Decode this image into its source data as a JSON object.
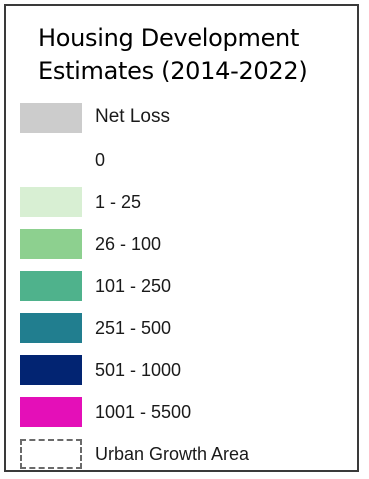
{
  "legend": {
    "title_line1": "Housing Development",
    "title_line2": "Estimates (2014-2022)",
    "items": [
      {
        "label": "Net Loss",
        "color": "#cccccc",
        "style": "solid"
      },
      {
        "label": "0",
        "color": "#ffffff",
        "style": "solid"
      },
      {
        "label": "1 - 25",
        "color": "#d8efd3",
        "style": "solid"
      },
      {
        "label": "26 - 100",
        "color": "#8dd08f",
        "style": "solid"
      },
      {
        "label": "101 - 250",
        "color": "#4fb28c",
        "style": "solid"
      },
      {
        "label": "251 - 500",
        "color": "#217e8f",
        "style": "solid"
      },
      {
        "label": "501 - 1000",
        "color": "#022472",
        "style": "solid"
      },
      {
        "label": "1001 - 5500",
        "color": "#e40fb8",
        "style": "solid"
      },
      {
        "label": "Urban Growth Area",
        "color": "#6a6a6a",
        "style": "dashed"
      }
    ]
  }
}
